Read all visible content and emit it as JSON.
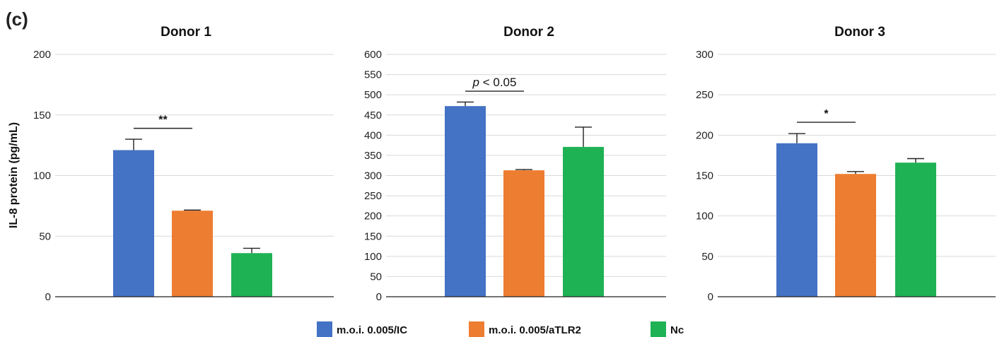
{
  "figure_label": "(c)",
  "y_axis_label": "IL-8 protein (pg/mL)",
  "colors": {
    "m.o.i. 0.005/IC": "#4472c4",
    "m.o.i. 0.005/aTLR2": "#ed7d31",
    "Nc": "#1fb254"
  },
  "legend": [
    {
      "label": "m.o.i. 0.005/IC",
      "color": "#4472c4"
    },
    {
      "label": "m.o.i. 0.005/aTLR2",
      "color": "#ed7d31"
    },
    {
      "label": "Nc",
      "color": "#1fb254"
    }
  ],
  "chart_data": [
    {
      "type": "bar",
      "title": "Donor 1",
      "categories": [
        "m.o.i. 0.005/IC",
        "m.o.i. 0.005/aTLR2",
        "Nc"
      ],
      "values": [
        121,
        71,
        36
      ],
      "errors": [
        9,
        0.5,
        4
      ],
      "ylim": [
        0,
        200
      ],
      "yticks": [
        0,
        50,
        100,
        150,
        200
      ],
      "grid": true,
      "annotation": {
        "text": "**",
        "from": 0,
        "to": 1,
        "y": 139
      }
    },
    {
      "type": "bar",
      "title": "Donor 2",
      "categories": [
        "m.o.i. 0.005/IC",
        "m.o.i. 0.005/aTLR2",
        "Nc"
      ],
      "values": [
        472,
        313,
        371
      ],
      "errors": [
        10,
        2,
        49
      ],
      "ylim": [
        0,
        600
      ],
      "yticks": [
        0,
        50,
        100,
        150,
        200,
        250,
        300,
        350,
        400,
        450,
        500,
        550,
        600
      ],
      "grid": true,
      "annotation": {
        "text": "p < 0.05",
        "from": 0,
        "to": 1,
        "y": 509
      }
    },
    {
      "type": "bar",
      "title": "Donor 3",
      "categories": [
        "m.o.i. 0.005/IC",
        "m.o.i. 0.005/aTLR2",
        "Nc"
      ],
      "values": [
        190,
        152,
        166
      ],
      "errors": [
        12,
        3,
        5
      ],
      "ylim": [
        0,
        300
      ],
      "yticks": [
        0,
        50,
        100,
        150,
        200,
        250,
        300
      ],
      "grid": true,
      "annotation": {
        "text": "*",
        "from": 0,
        "to": 1,
        "y": 216
      }
    }
  ]
}
